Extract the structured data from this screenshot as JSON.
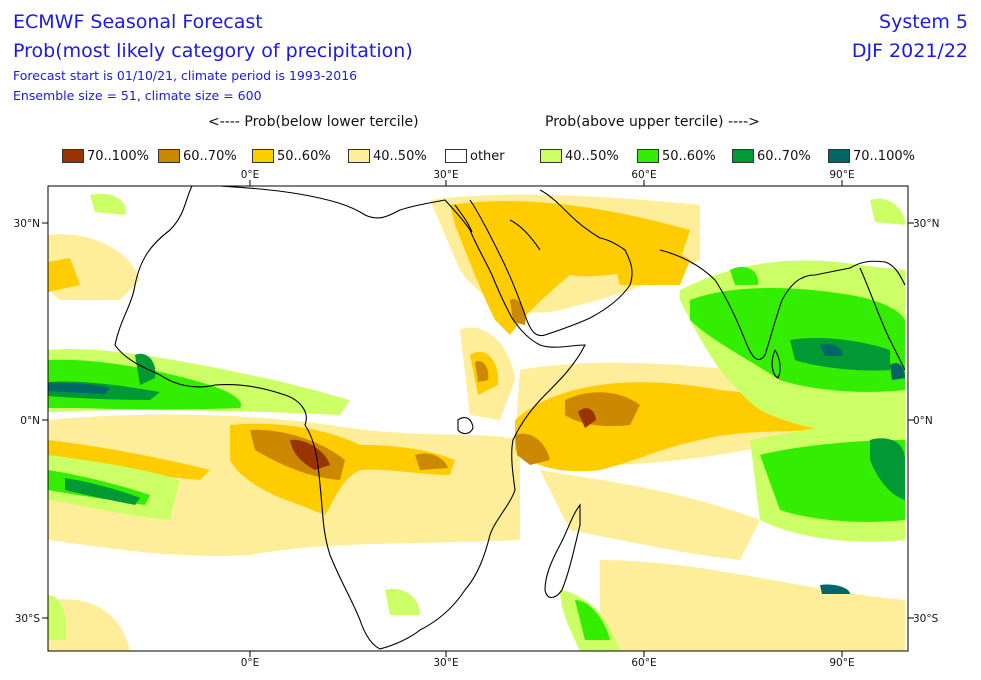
{
  "header": {
    "title": "ECMWF Seasonal Forecast",
    "subtitle": "Prob(most likely category of precipitation)",
    "meta1": "Forecast start is 01/10/21, climate period is 1993-2016",
    "meta2": "Ensemble size = 51, climate size = 600",
    "system": "System 5",
    "season": "DJF 2021/22"
  },
  "legend": {
    "below_label": "<---- Prob(below lower tercile)",
    "above_label": "Prob(above upper tercile) ---->",
    "items": [
      {
        "label": "70..100%",
        "color": "#993300"
      },
      {
        "label": "60..70%",
        "color": "#cc8800"
      },
      {
        "label": "50..60%",
        "color": "#ffcc00"
      },
      {
        "label": "40..50%",
        "color": "#ffee99"
      },
      {
        "label": "other",
        "color": "#ffffff"
      },
      {
        "label": "40..50%",
        "color": "#ccff66"
      },
      {
        "label": "50..60%",
        "color": "#33ee00"
      },
      {
        "label": "60..70%",
        "color": "#009933"
      },
      {
        "label": "70..100%",
        "color": "#006666"
      }
    ]
  },
  "axes": {
    "lon_ticks": [
      "0°E",
      "30°E",
      "60°E",
      "90°E"
    ],
    "lat_ticks_left": [
      "30°N",
      "0°N",
      "30°S"
    ],
    "lat_ticks_right": [
      "30°N",
      "0°N",
      "30°S"
    ]
  }
}
